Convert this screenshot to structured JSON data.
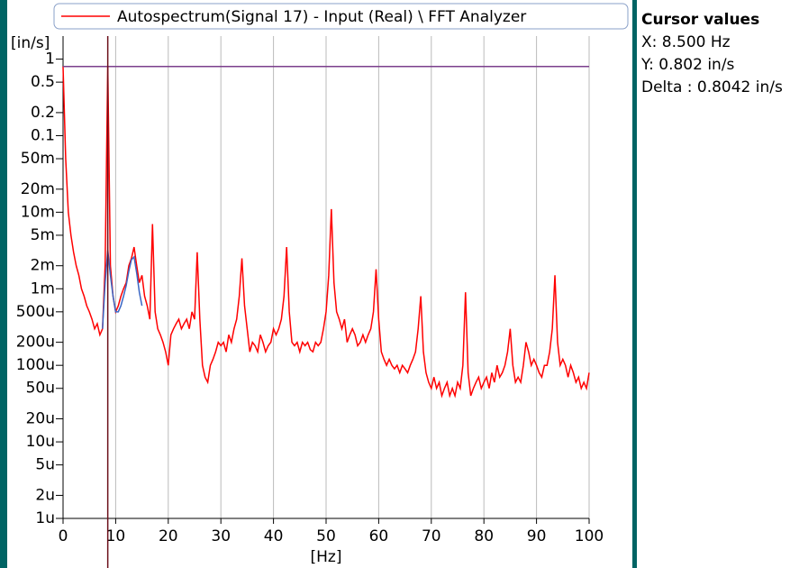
{
  "chart_data": {
    "type": "line",
    "xlabel": "[Hz]",
    "ylabel": "[in/s]",
    "log_y": true,
    "grid": "x",
    "xlim": [
      0,
      100
    ],
    "xticks": [
      0,
      10,
      20,
      30,
      40,
      50,
      60,
      70,
      80,
      90,
      100
    ],
    "ylim": [
      1e-06,
      2
    ],
    "yticks": [
      1,
      0.5,
      0.2,
      0.1,
      {
        "value": 0.05,
        "label": "50m"
      },
      {
        "value": 0.02,
        "label": "20m"
      },
      {
        "value": 0.01,
        "label": "10m"
      },
      {
        "value": 0.005,
        "label": "5m"
      },
      {
        "value": 0.002,
        "label": "2m"
      },
      {
        "value": 0.001,
        "label": "1m"
      },
      {
        "value": 0.0005,
        "label": "500u"
      },
      {
        "value": 0.0002,
        "label": "200u"
      },
      {
        "value": 0.0001,
        "label": "100u"
      },
      {
        "value": 5e-05,
        "label": "50u"
      },
      {
        "value": 2e-05,
        "label": "20u"
      },
      {
        "value": 1e-05,
        "label": "10u"
      },
      {
        "value": 5e-06,
        "label": "5u"
      },
      {
        "value": 2e-06,
        "label": "2u"
      },
      {
        "value": 1e-06,
        "label": "1u"
      }
    ],
    "series": [
      {
        "name": "Autospectrum(Signal 17) - Input (Real) \\ FFT Analyzer",
        "color": "#ff0000",
        "x": [
          0,
          0.5,
          1,
          1.5,
          2,
          2.5,
          3,
          3.5,
          4,
          4.5,
          5,
          5.5,
          6,
          6.5,
          7,
          7.5,
          8,
          8.5,
          9,
          9.5,
          10,
          10.5,
          11,
          11.5,
          12,
          12.5,
          13,
          13.5,
          14,
          14.5,
          15,
          15.5,
          16,
          16.5,
          17,
          17.5,
          18,
          18.5,
          19,
          19.5,
          20,
          20.5,
          21,
          21.5,
          22,
          22.5,
          23,
          23.5,
          24,
          24.5,
          25,
          25.5,
          26,
          26.5,
          27,
          27.5,
          28,
          28.5,
          29,
          29.5,
          30,
          30.5,
          31,
          31.5,
          32,
          32.5,
          33,
          33.5,
          34,
          34.5,
          35,
          35.5,
          36,
          36.5,
          37,
          37.5,
          38,
          38.5,
          39,
          39.5,
          40,
          40.5,
          41,
          41.5,
          42,
          42.5,
          43,
          43.5,
          44,
          44.5,
          45,
          45.5,
          46,
          46.5,
          47,
          47.5,
          48,
          48.5,
          49,
          49.5,
          50,
          50.5,
          51,
          51.5,
          52,
          52.5,
          53,
          53.5,
          54,
          54.5,
          55,
          55.5,
          56,
          56.5,
          57,
          57.5,
          58,
          58.5,
          59,
          59.5,
          60,
          60.5,
          61,
          61.5,
          62,
          62.5,
          63,
          63.5,
          64,
          64.5,
          65,
          65.5,
          66,
          66.5,
          67,
          67.5,
          68,
          68.5,
          69,
          69.5,
          70,
          70.5,
          71,
          71.5,
          72,
          72.5,
          73,
          73.5,
          74,
          74.5,
          75,
          75.5,
          76,
          76.5,
          77,
          77.5,
          78,
          78.5,
          79,
          79.5,
          80,
          80.5,
          81,
          81.5,
          82,
          82.5,
          83,
          83.5,
          84,
          84.5,
          85,
          85.5,
          86,
          86.5,
          87,
          87.5,
          88,
          88.5,
          89,
          89.5,
          90,
          90.5,
          91,
          91.5,
          92,
          92.5,
          93,
          93.5,
          94,
          94.5,
          95,
          95.5,
          96,
          96.5,
          97,
          97.5,
          98,
          98.5,
          99,
          99.5,
          100
        ],
        "values": [
          0.8,
          0.05,
          0.01,
          0.005,
          0.003,
          0.002,
          0.0015,
          0.001,
          0.0008,
          0.0006,
          0.0005,
          0.0004,
          0.0003,
          0.00035,
          0.00025,
          0.0003,
          0.002,
          0.8,
          0.002,
          0.0008,
          0.0005,
          0.0006,
          0.0008,
          0.001,
          0.0012,
          0.002,
          0.0025,
          0.0035,
          0.002,
          0.0012,
          0.0015,
          0.0008,
          0.0006,
          0.0004,
          0.007,
          0.0005,
          0.0003,
          0.00025,
          0.0002,
          0.00015,
          0.0001,
          0.00025,
          0.0003,
          0.00035,
          0.0004,
          0.0003,
          0.00035,
          0.0004,
          0.0003,
          0.0005,
          0.0004,
          0.003,
          0.0004,
          0.0001,
          7e-05,
          6e-05,
          0.0001,
          0.00012,
          0.00015,
          0.0002,
          0.00018,
          0.0002,
          0.00015,
          0.00025,
          0.0002,
          0.0003,
          0.0004,
          0.0008,
          0.0025,
          0.0006,
          0.0003,
          0.00015,
          0.0002,
          0.00018,
          0.00015,
          0.00025,
          0.0002,
          0.00015,
          0.00018,
          0.0002,
          0.0003,
          0.00025,
          0.0003,
          0.0004,
          0.0008,
          0.0035,
          0.0005,
          0.0002,
          0.00018,
          0.0002,
          0.00015,
          0.0002,
          0.00018,
          0.0002,
          0.00016,
          0.00015,
          0.0002,
          0.00018,
          0.0002,
          0.0003,
          0.0005,
          0.0015,
          0.011,
          0.0012,
          0.0005,
          0.0004,
          0.0003,
          0.0004,
          0.0002,
          0.00025,
          0.0003,
          0.00025,
          0.00018,
          0.0002,
          0.00025,
          0.0002,
          0.00025,
          0.0003,
          0.0005,
          0.0018,
          0.0004,
          0.00015,
          0.00012,
          0.0001,
          0.00012,
          0.0001,
          9e-05,
          0.0001,
          8e-05,
          0.0001,
          9e-05,
          8e-05,
          0.0001,
          0.00012,
          0.00015,
          0.0003,
          0.0008,
          0.00015,
          8e-05,
          6e-05,
          5e-05,
          7e-05,
          5e-05,
          6e-05,
          4e-05,
          5e-05,
          6e-05,
          4e-05,
          5e-05,
          4e-05,
          6e-05,
          5e-05,
          0.0001,
          0.0009,
          8e-05,
          4e-05,
          5e-05,
          6e-05,
          7e-05,
          5e-05,
          6e-05,
          7e-05,
          5e-05,
          8e-05,
          6e-05,
          0.0001,
          7e-05,
          8e-05,
          0.0001,
          0.00015,
          0.0003,
          0.0001,
          6e-05,
          7e-05,
          6e-05,
          0.0001,
          0.0002,
          0.00015,
          0.0001,
          0.00012,
          0.0001,
          8e-05,
          7e-05,
          0.0001,
          0.0001,
          0.00015,
          0.0003,
          0.0015,
          0.0002,
          0.0001,
          0.00012,
          0.0001,
          7e-05,
          0.0001,
          8e-05,
          6e-05,
          7e-05,
          5e-05,
          6e-05,
          5e-05,
          8e-05
        ]
      },
      {
        "color": "#3a66c4",
        "x": [
          7.5,
          8,
          8.5,
          9,
          9.5,
          10,
          10.5,
          11,
          11.5,
          12,
          12.5,
          13,
          13.5,
          14,
          14.5,
          15
        ],
        "values": [
          0.0003,
          0.0012,
          0.0032,
          0.0015,
          0.0008,
          0.0005,
          0.0005,
          0.0006,
          0.0008,
          0.0011,
          0.0017,
          0.0024,
          0.0026,
          0.0016,
          0.0009,
          0.0006
        ]
      }
    ],
    "cursor": {
      "x": 8.5,
      "y": 0.802,
      "x_color": "#6b0f1a",
      "y_color": "#7b3f8c"
    },
    "cursor_panel": {
      "title": "Cursor values",
      "lines": [
        "X: 8.500 Hz",
        "Y: 0.802 in/s",
        "Delta : 0.8042 in/s"
      ]
    }
  }
}
